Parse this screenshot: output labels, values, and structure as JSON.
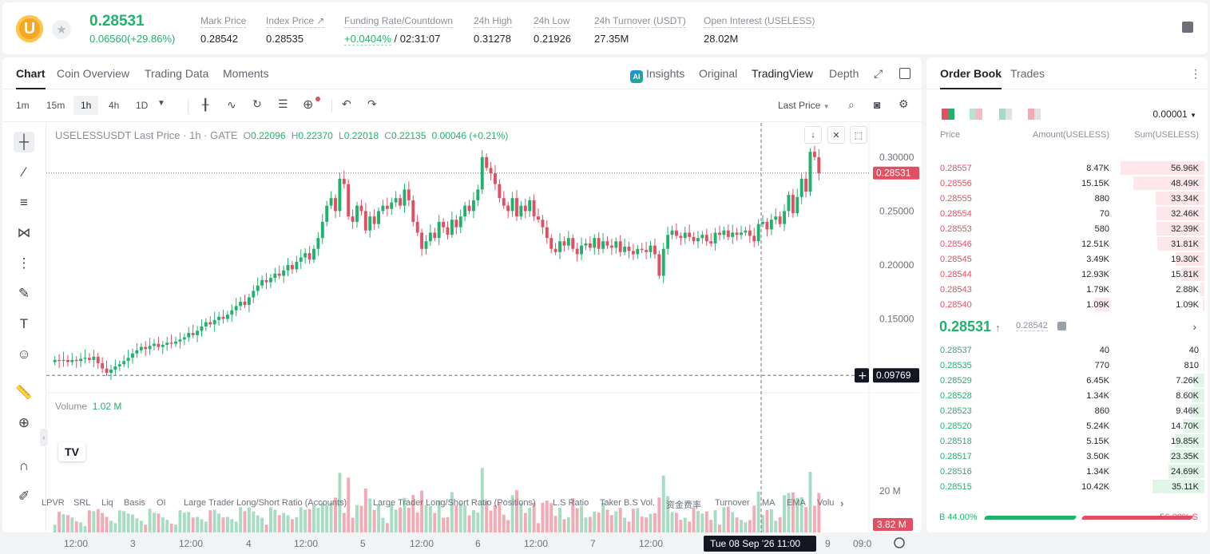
{
  "header": {
    "coin_letter": "U",
    "last_price": "0.28531",
    "change": "0.06560(+29.86%)",
    "stats": [
      {
        "label": "Mark Price",
        "value": "0.28542"
      },
      {
        "label": "Index Price ↗",
        "value": "0.28535"
      },
      {
        "label": "Funding Rate/Countdown",
        "value_green": "+0.0404%",
        "value": "/ 02:31:07"
      },
      {
        "label": "24h High",
        "value": "0.31278"
      },
      {
        "label": "24h Low",
        "value": "0.21926"
      },
      {
        "label": "24h Turnover (USDT)",
        "value": "27.35M"
      },
      {
        "label": "Open Interest (USELESS)",
        "value": "28.02M"
      }
    ]
  },
  "chart_tabs": [
    "Chart",
    "Coin Overview",
    "Trading Data",
    "Moments"
  ],
  "chart_right_tabs": {
    "insights": "Insights",
    "original": "Original",
    "tradingview": "TradingView",
    "depth": "Depth"
  },
  "timeframes": [
    "1m",
    "15m",
    "1h",
    "4h",
    "1D"
  ],
  "price_type": "Last Price",
  "legend": {
    "symbol": "USELESSUSDT Last Price · 1h · GATE",
    "o_label": "O",
    "o": "0.22096",
    "h_label": "H",
    "h": "0.22370",
    "l_label": "L",
    "l": "0.22018",
    "c_label": "C",
    "c": "0.22135",
    "change": "0.00046 (+0.21%)"
  },
  "volume_legend": {
    "label": "Volume",
    "value": "1.02 M"
  },
  "crosshair": {
    "price_label": "0.09769",
    "time_label": "Tue 08 Sep '26   11:00"
  },
  "volume_badge": "3.82 M",
  "volume_axis": "20 M",
  "chart_data": {
    "type": "candlestick",
    "y_ticks": [
      0.3,
      0.25,
      0.2,
      0.15
    ],
    "y_tick_labels": [
      "0.30000",
      "0.25000",
      "0.20000",
      "0.15000"
    ],
    "ylim": [
      0.0875,
      0.3317
    ],
    "last_price": 0.28531,
    "last_price_label": "0.28531",
    "crosshair_price": 0.09769,
    "x_tick_labels": [
      "12:00",
      "3",
      "12:00",
      "4",
      "12:00",
      "5",
      "12:00",
      "6",
      "12:00",
      "7",
      "12:00",
      "9",
      "09:0"
    ],
    "closes": [
      0.112,
      0.111,
      0.112,
      0.11,
      0.112,
      0.111,
      0.113,
      0.114,
      0.112,
      0.115,
      0.109,
      0.104,
      0.1,
      0.103,
      0.106,
      0.108,
      0.111,
      0.114,
      0.118,
      0.121,
      0.124,
      0.122,
      0.125,
      0.127,
      0.124,
      0.126,
      0.128,
      0.127,
      0.129,
      0.131,
      0.133,
      0.137,
      0.135,
      0.139,
      0.143,
      0.147,
      0.145,
      0.149,
      0.152,
      0.15,
      0.154,
      0.158,
      0.162,
      0.166,
      0.163,
      0.17,
      0.176,
      0.181,
      0.186,
      0.184,
      0.188,
      0.192,
      0.19,
      0.195,
      0.2,
      0.196,
      0.203,
      0.207,
      0.211,
      0.205,
      0.215,
      0.225,
      0.24,
      0.255,
      0.262,
      0.25,
      0.28,
      0.275,
      0.245,
      0.24,
      0.255,
      0.25,
      0.232,
      0.245,
      0.238,
      0.25,
      0.255,
      0.252,
      0.258,
      0.262,
      0.255,
      0.27,
      0.26,
      0.24,
      0.23,
      0.215,
      0.222,
      0.23,
      0.225,
      0.24,
      0.235,
      0.228,
      0.242,
      0.235,
      0.245,
      0.255,
      0.25,
      0.26,
      0.27,
      0.3,
      0.29,
      0.285,
      0.275,
      0.262,
      0.255,
      0.25,
      0.262,
      0.245,
      0.255,
      0.25,
      0.26,
      0.245,
      0.242,
      0.235,
      0.225,
      0.215,
      0.212,
      0.222,
      0.218,
      0.225,
      0.215,
      0.21,
      0.218,
      0.22,
      0.216,
      0.225,
      0.215,
      0.222,
      0.218,
      0.216,
      0.222,
      0.212,
      0.217,
      0.213,
      0.21,
      0.215,
      0.214,
      0.212,
      0.218,
      0.21,
      0.19,
      0.215,
      0.228,
      0.232,
      0.227,
      0.225,
      0.23,
      0.226,
      0.222,
      0.225,
      0.228,
      0.222,
      0.22,
      0.23,
      0.228,
      0.232,
      0.226,
      0.23,
      0.228,
      0.23,
      0.232,
      0.227,
      0.222,
      0.238,
      0.24,
      0.233,
      0.242,
      0.245,
      0.238,
      0.25,
      0.265,
      0.248,
      0.263,
      0.28,
      0.268,
      0.305,
      0.3,
      0.285
    ],
    "volume_label": "Volume",
    "volume_axis_labels": [
      "20 M"
    ]
  },
  "bottom_indicators": [
    "LPVR",
    "SRL",
    "Liq",
    "Basis",
    "OI",
    "Large Trader Long/Short Ratio (Accounts)",
    "Large Trader Long/Short Ratio (Positions)",
    "L.S Ratio",
    "Taker B.S Vol.",
    "资金费率",
    "Turnover",
    "MA",
    "EMA",
    "Volu"
  ],
  "orderbook": {
    "tabs": [
      "Order Book",
      "Trades"
    ],
    "precision": "0.00001",
    "headers": {
      "price": "Price",
      "amount": "Amount(USELESS)",
      "sum": "Sum(USELESS)"
    },
    "asks": [
      {
        "p": "0.28557",
        "a": "8.47K",
        "s": "56.96K",
        "sv": 56.96,
        "av": 0
      },
      {
        "p": "0.28556",
        "a": "15.15K",
        "s": "48.49K",
        "sv": 48.49,
        "av": 0
      },
      {
        "p": "0.28555",
        "a": "880",
        "s": "33.34K",
        "sv": 33.34,
        "av": 0
      },
      {
        "p": "0.28554",
        "a": "70",
        "s": "32.46K",
        "sv": 32.46,
        "av": 0
      },
      {
        "p": "0.28553",
        "a": "580",
        "s": "32.39K",
        "sv": 32.39,
        "av": 0
      },
      {
        "p": "0.28546",
        "a": "12.51K",
        "s": "31.81K",
        "sv": 31.81,
        "av": 0
      },
      {
        "p": "0.28545",
        "a": "3.49K",
        "s": "19.30K",
        "sv": 19.3,
        "av": 0
      },
      {
        "p": "0.28544",
        "a": "12.93K",
        "s": "15.81K",
        "sv": 15.81,
        "av": 0
      },
      {
        "p": "0.28543",
        "a": "1.79K",
        "s": "2.88K",
        "sv": 2.88,
        "av": 0
      },
      {
        "p": "0.28540",
        "a": "1.09K",
        "s": "1.09K",
        "sv": 1.09,
        "av": 1.09
      }
    ],
    "last_price": "0.28531",
    "mark_price": "0.28542",
    "bids": [
      {
        "p": "0.28537",
        "a": "40",
        "s": "40",
        "sv": 0.04,
        "av": 0
      },
      {
        "p": "0.28535",
        "a": "770",
        "s": "810",
        "sv": 0.81,
        "av": 0
      },
      {
        "p": "0.28529",
        "a": "6.45K",
        "s": "7.26K",
        "sv": 7.26,
        "av": 6.45
      },
      {
        "p": "0.28528",
        "a": "1.34K",
        "s": "8.60K",
        "sv": 8.6,
        "av": 0
      },
      {
        "p": "0.28523",
        "a": "860",
        "s": "9.46K",
        "sv": 9.46,
        "av": 0
      },
      {
        "p": "0.28520",
        "a": "5.24K",
        "s": "14.70K",
        "sv": 14.7,
        "av": 5.24
      },
      {
        "p": "0.28518",
        "a": "5.15K",
        "s": "19.85K",
        "sv": 19.85,
        "av": 0
      },
      {
        "p": "0.28517",
        "a": "3.50K",
        "s": "23.35K",
        "sv": 23.35,
        "av": 0
      },
      {
        "p": "0.28516",
        "a": "1.34K",
        "s": "24.69K",
        "sv": 24.69,
        "av": 0
      },
      {
        "p": "0.28515",
        "a": "10.42K",
        "s": "35.11K",
        "sv": 35.11,
        "av": 0
      }
    ],
    "buy_pct": "B 44.00%",
    "sell_pct": "56.00% S",
    "buy_ratio": 0.44
  },
  "colors": {
    "up": "#20b26c",
    "down": "#e14f63",
    "up_vol": "#a6dcc2",
    "down_vol": "#f4a9b4"
  }
}
